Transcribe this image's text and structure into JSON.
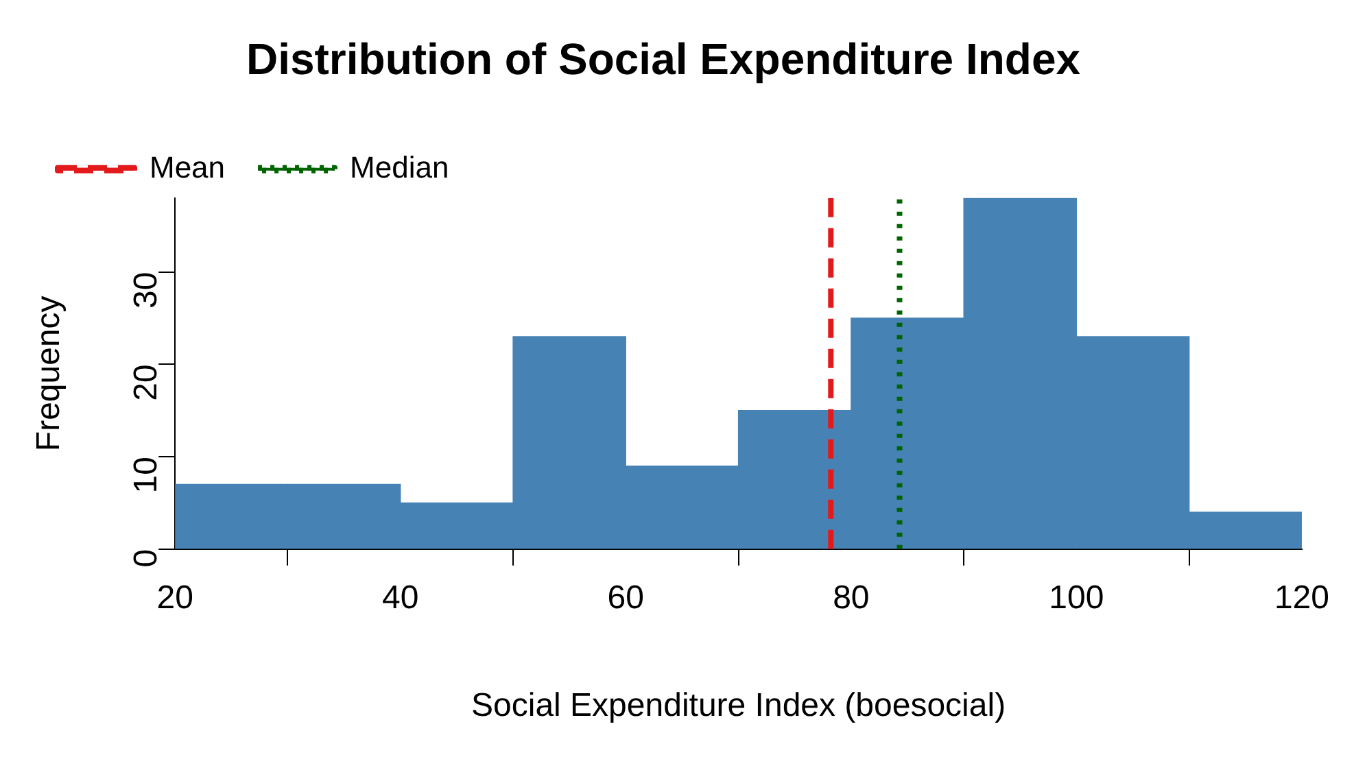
{
  "chart_data": {
    "type": "histogram",
    "title": "Distribution of Social Expenditure Index",
    "xlabel": "Social Expenditure Index (boesocial)",
    "ylabel": "Frequency",
    "bins": [
      20,
      30,
      40,
      50,
      60,
      70,
      80,
      90,
      100,
      110,
      120
    ],
    "values": [
      7,
      7,
      5,
      23,
      9,
      15,
      25,
      38,
      23,
      4
    ],
    "color": "#4682b4",
    "xlim": [
      20,
      120
    ],
    "xticks": [
      20,
      40,
      60,
      80,
      100,
      120
    ],
    "ylim": [
      0,
      38
    ],
    "yticks": [
      0,
      10,
      20,
      30
    ],
    "ref_lines": [
      {
        "axis": "x",
        "value": 78.2,
        "label": "Mean",
        "color": "#e31a1c",
        "line_style": "dashed"
      },
      {
        "axis": "x",
        "value": 84.3,
        "label": "Median",
        "color": "#006400",
        "line_style": "dotted"
      }
    ],
    "legend": "top left",
    "grid": false
  }
}
